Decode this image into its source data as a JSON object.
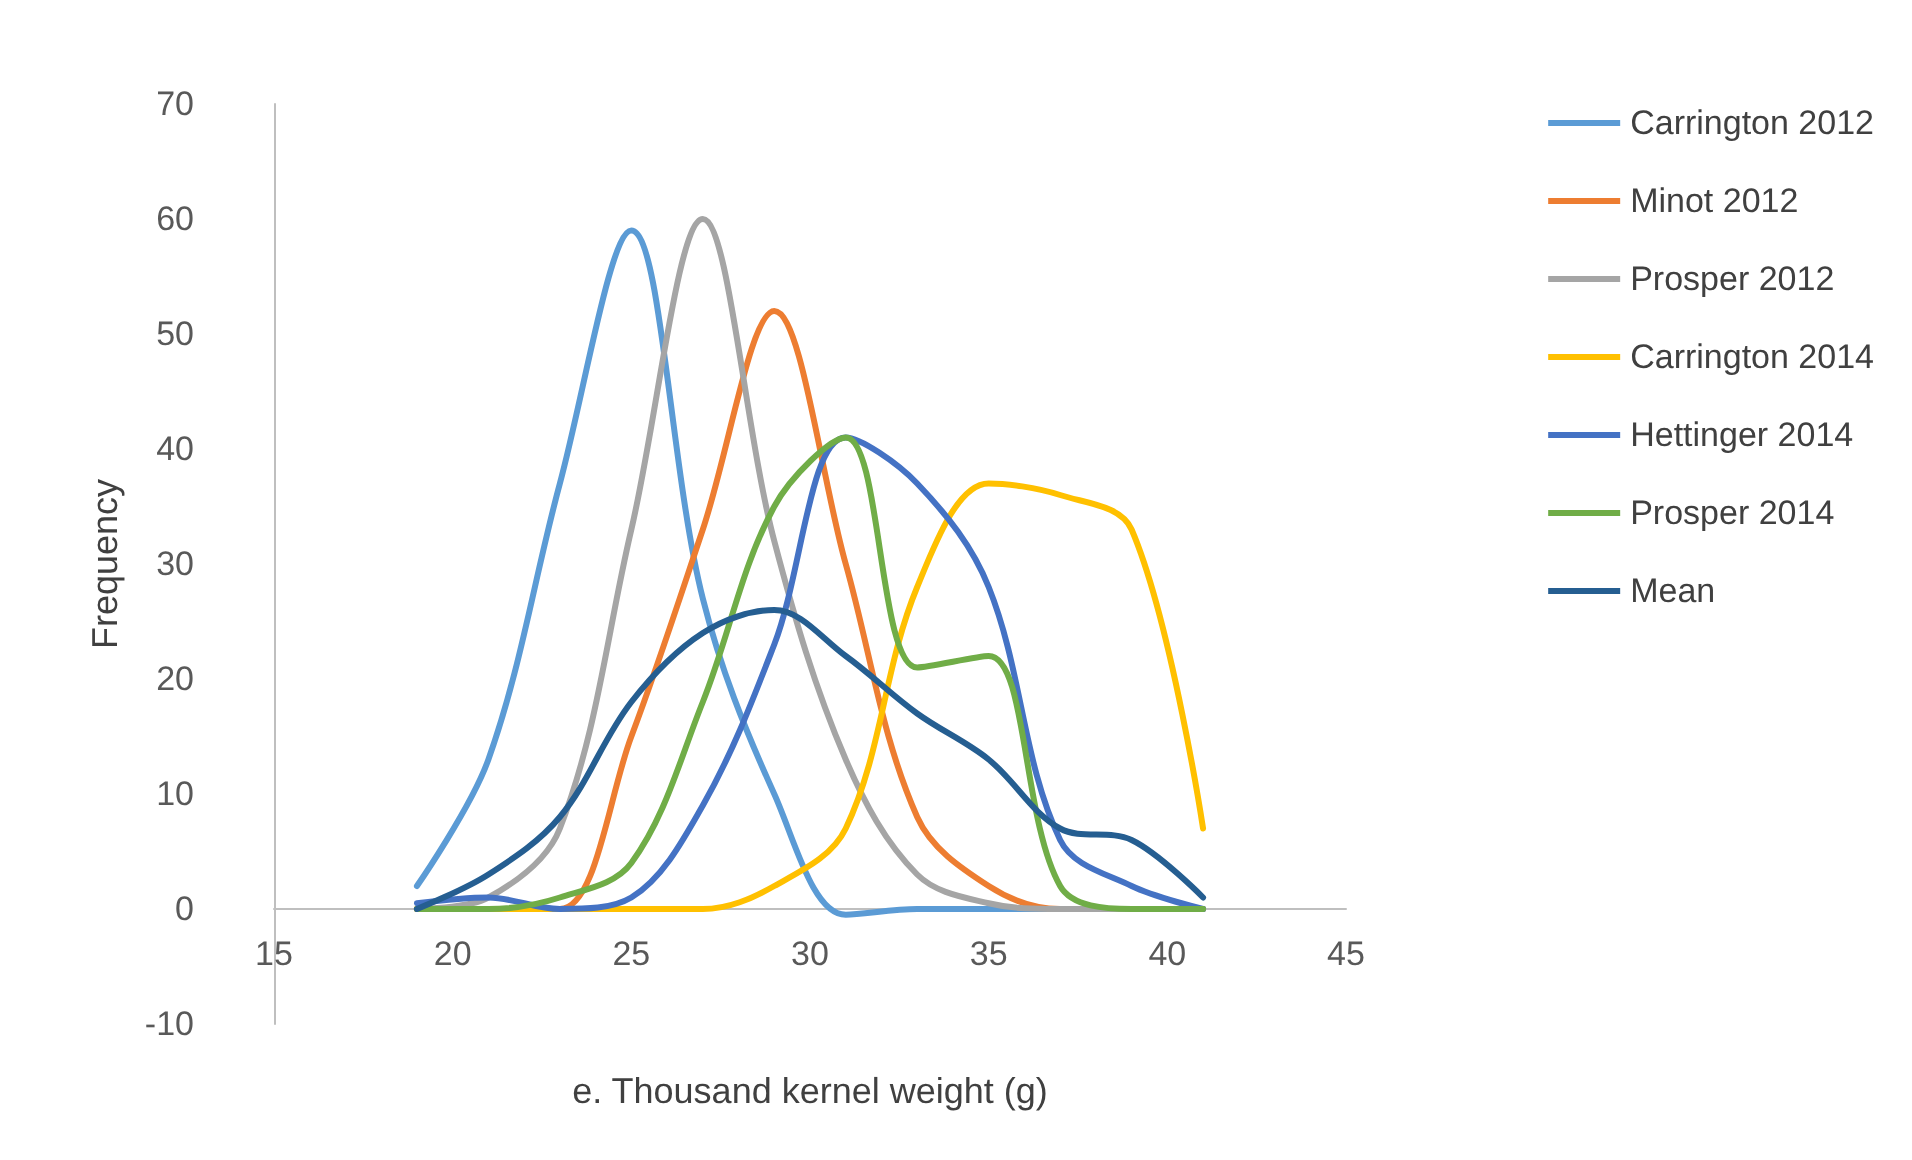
{
  "chart_data": {
    "type": "line",
    "xlabel": "e. Thousand kernel weight (g)",
    "ylabel": "Frequency",
    "x": [
      19,
      21,
      23,
      25,
      27,
      29,
      31,
      33,
      35,
      37,
      39,
      41
    ],
    "series": [
      {
        "name": "Carrington 2012",
        "color": "#5b9bd5",
        "values": [
          2,
          13,
          37,
          59,
          27,
          10,
          -0.5,
          0,
          0,
          0,
          0,
          0
        ]
      },
      {
        "name": "Minot 2012",
        "color": "#ed7d31",
        "values": [
          0,
          0,
          0,
          15,
          33,
          52,
          30,
          8,
          2,
          0,
          0,
          0
        ]
      },
      {
        "name": "Prosper 2012",
        "color": "#a5a5a5",
        "values": [
          0,
          1,
          7,
          33,
          60,
          32,
          13,
          3,
          0.5,
          0,
          0,
          0
        ]
      },
      {
        "name": "Carrington 2014",
        "color": "#ffc000",
        "values": [
          0,
          0,
          0,
          0,
          0,
          2,
          7,
          28,
          37,
          36,
          33,
          7
        ]
      },
      {
        "name": "Hettinger 2014",
        "color": "#4472c4",
        "values": [
          0.5,
          1,
          0,
          1,
          9,
          23,
          41,
          37,
          28,
          6,
          2,
          0
        ]
      },
      {
        "name": "Prosper 2014",
        "color": "#70ad47",
        "values": [
          0,
          0,
          1,
          4,
          18,
          35,
          41,
          21,
          22,
          2,
          0,
          0
        ]
      },
      {
        "name": "Mean",
        "color": "#255e91",
        "values": [
          0,
          3,
          8,
          18,
          24,
          26,
          22,
          17,
          13,
          7,
          6,
          1
        ]
      }
    ],
    "xlim": [
      15,
      45
    ],
    "xticks": [
      15,
      20,
      25,
      30,
      35,
      40,
      45
    ],
    "ylim": [
      -10,
      70
    ],
    "yticks": [
      -10,
      0,
      10,
      20,
      30,
      40,
      50,
      60,
      70
    ],
    "grid": false,
    "legend": "right",
    "marker": "none",
    "line_style": "solid"
  }
}
